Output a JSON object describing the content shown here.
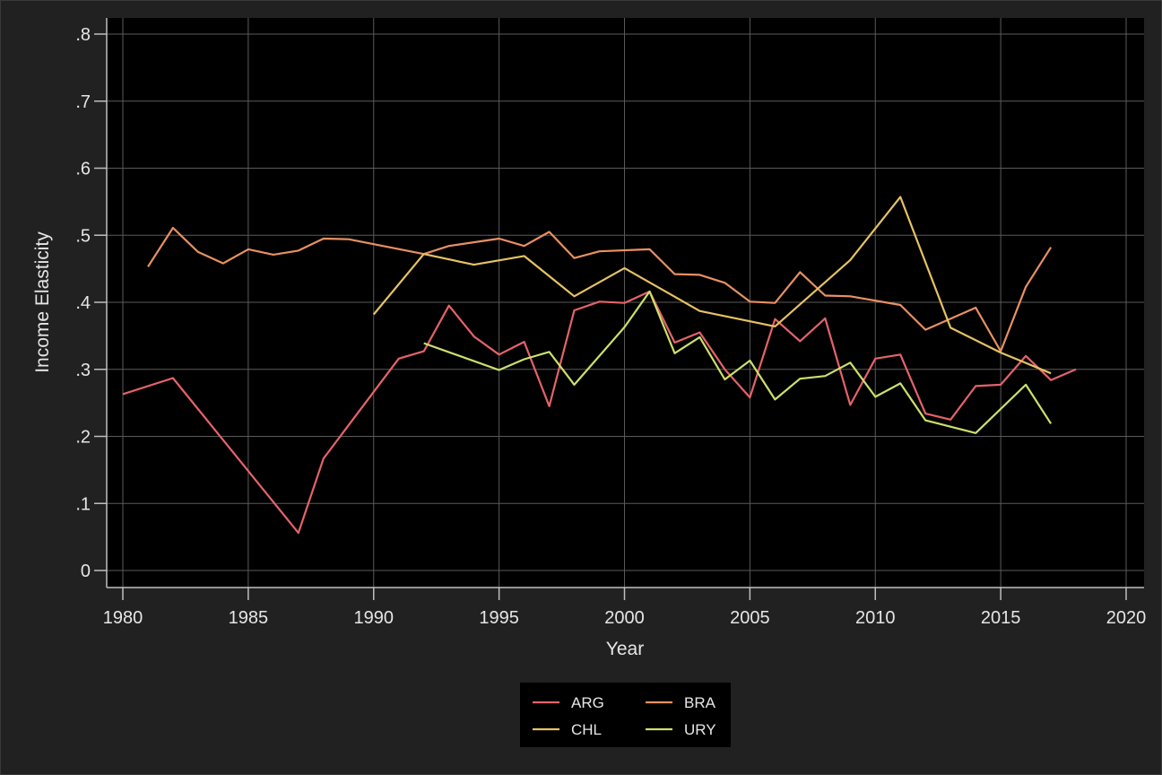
{
  "chart_data": {
    "type": "line",
    "title": "",
    "xlabel": "Year",
    "ylabel": "Income Elasticity",
    "xlim": [
      1980,
      2020
    ],
    "ylim": [
      0,
      0.8
    ],
    "x_ticks": [
      1980,
      1985,
      1990,
      1995,
      2000,
      2005,
      2010,
      2015,
      2020
    ],
    "x_tick_labels": [
      "1980",
      "1985",
      "1990",
      "1995",
      "2000",
      "2005",
      "2010",
      "2015",
      "2020"
    ],
    "y_ticks": [
      0,
      0.1,
      0.2,
      0.3,
      0.4,
      0.5,
      0.6,
      0.7,
      0.8
    ],
    "y_tick_labels": [
      "0",
      ".1",
      ".2",
      ".3",
      ".4",
      ".5",
      ".6",
      ".7",
      ".8"
    ],
    "grid": true,
    "legend_position": "bottom",
    "series": [
      {
        "name": "ARG",
        "color": "#e5636b",
        "points": [
          [
            1980,
            0.263
          ],
          [
            1982,
            0.287
          ],
          [
            1987,
            0.056
          ],
          [
            1988,
            0.167
          ],
          [
            1991,
            0.316
          ],
          [
            1992,
            0.327
          ],
          [
            1993,
            0.395
          ],
          [
            1994,
            0.349
          ],
          [
            1995,
            0.322
          ],
          [
            1996,
            0.341
          ],
          [
            1997,
            0.245
          ],
          [
            1998,
            0.388
          ],
          [
            1999,
            0.401
          ],
          [
            2000,
            0.399
          ],
          [
            2001,
            0.416
          ],
          [
            2002,
            0.34
          ],
          [
            2003,
            0.355
          ],
          [
            2004,
            0.3
          ],
          [
            2005,
            0.258
          ],
          [
            2006,
            0.375
          ],
          [
            2007,
            0.342
          ],
          [
            2008,
            0.376
          ],
          [
            2009,
            0.247
          ],
          [
            2010,
            0.316
          ],
          [
            2011,
            0.322
          ],
          [
            2012,
            0.234
          ],
          [
            2013,
            0.225
          ],
          [
            2014,
            0.275
          ],
          [
            2015,
            0.277
          ],
          [
            2016,
            0.32
          ],
          [
            2017,
            0.284
          ],
          [
            2018,
            0.3
          ]
        ]
      },
      {
        "name": "BRA",
        "color": "#e89162",
        "points": [
          [
            1981,
            0.453
          ],
          [
            1982,
            0.511
          ],
          [
            1983,
            0.475
          ],
          [
            1984,
            0.458
          ],
          [
            1985,
            0.479
          ],
          [
            1986,
            0.471
          ],
          [
            1987,
            0.477
          ],
          [
            1988,
            0.495
          ],
          [
            1989,
            0.494
          ],
          [
            1992,
            0.472
          ],
          [
            1993,
            0.484
          ],
          [
            1995,
            0.495
          ],
          [
            1996,
            0.484
          ],
          [
            1997,
            0.505
          ],
          [
            1998,
            0.466
          ],
          [
            1999,
            0.476
          ],
          [
            2001,
            0.479
          ],
          [
            2002,
            0.442
          ],
          [
            2003,
            0.441
          ],
          [
            2004,
            0.429
          ],
          [
            2005,
            0.401
          ],
          [
            2006,
            0.399
          ],
          [
            2007,
            0.445
          ],
          [
            2008,
            0.41
          ],
          [
            2009,
            0.409
          ],
          [
            2011,
            0.396
          ],
          [
            2012,
            0.359
          ],
          [
            2014,
            0.392
          ],
          [
            2015,
            0.327
          ],
          [
            2016,
            0.423
          ],
          [
            2017,
            0.482
          ]
        ]
      },
      {
        "name": "CHL",
        "color": "#e6c263",
        "points": [
          [
            1990,
            0.382
          ],
          [
            1992,
            0.472
          ],
          [
            1994,
            0.456
          ],
          [
            1996,
            0.469
          ],
          [
            1998,
            0.409
          ],
          [
            2000,
            0.451
          ],
          [
            2003,
            0.387
          ],
          [
            2006,
            0.364
          ],
          [
            2009,
            0.463
          ],
          [
            2011,
            0.557
          ],
          [
            2013,
            0.362
          ],
          [
            2015,
            0.325
          ],
          [
            2017,
            0.294
          ]
        ]
      },
      {
        "name": "URY",
        "color": "#cde06b",
        "points": [
          [
            1992,
            0.339
          ],
          [
            1995,
            0.299
          ],
          [
            1996,
            0.315
          ],
          [
            1997,
            0.326
          ],
          [
            1998,
            0.277
          ],
          [
            2000,
            0.363
          ],
          [
            2001,
            0.416
          ],
          [
            2002,
            0.324
          ],
          [
            2003,
            0.348
          ],
          [
            2004,
            0.285
          ],
          [
            2005,
            0.313
          ],
          [
            2006,
            0.255
          ],
          [
            2007,
            0.286
          ],
          [
            2008,
            0.29
          ],
          [
            2009,
            0.31
          ],
          [
            2010,
            0.259
          ],
          [
            2011,
            0.279
          ],
          [
            2012,
            0.224
          ],
          [
            2014,
            0.205
          ],
          [
            2016,
            0.277
          ],
          [
            2017,
            0.219
          ]
        ]
      }
    ],
    "legend_order": [
      "ARG",
      "BRA",
      "CHL",
      "URY"
    ]
  }
}
